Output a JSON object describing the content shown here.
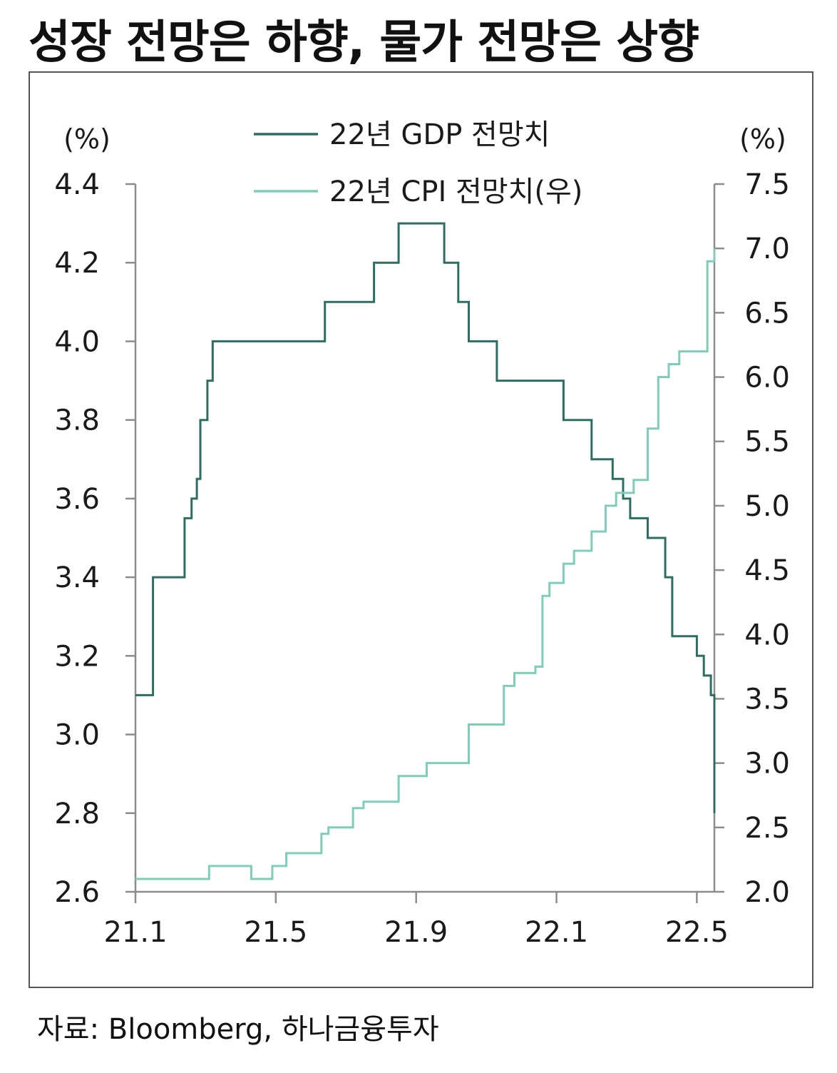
{
  "title": "성장 전망은 하향, 물가 전망은 상향",
  "source": "자료: Bloomberg, 하나금융투자",
  "chart_data": {
    "type": "line",
    "left_unit": "(%)",
    "right_unit": "(%)",
    "left_ylim": [
      2.6,
      4.4
    ],
    "right_ylim": [
      2.0,
      7.5
    ],
    "left_ticks": [
      "4.4",
      "4.2",
      "4.0",
      "3.8",
      "3.6",
      "3.4",
      "3.2",
      "3.0",
      "2.8",
      "2.6"
    ],
    "right_ticks": [
      "7.5",
      "7.0",
      "6.5",
      "6.0",
      "5.5",
      "5.0",
      "4.5",
      "4.0",
      "3.5",
      "3.0",
      "2.5",
      "2.0"
    ],
    "x_ticks": [
      "21.1",
      "21.5",
      "21.9",
      "22.1",
      "22.5"
    ],
    "x_tick_positions": [
      0,
      4,
      8,
      12,
      16
    ],
    "xlim": [
      0,
      16.5
    ],
    "colors": {
      "gdp": "#2e6e60",
      "cpi": "#7fcdb9",
      "axis": "#8c8c8c"
    },
    "series": [
      {
        "name": "22년 GDP 전망치",
        "axis": "left",
        "step": true,
        "x": [
          0,
          0.5,
          1.4,
          1.6,
          1.75,
          1.85,
          2.05,
          2.2,
          2.4,
          2.6,
          5.4,
          6.5,
          6.8,
          7.5,
          8.0,
          8.8,
          9.2,
          9.5,
          10.3,
          11.1,
          12.2,
          13.0,
          13.6,
          13.9,
          14.1,
          14.6,
          15.1,
          15.3,
          16.0,
          16.2,
          16.4,
          16.5
        ],
        "values": [
          3.1,
          3.4,
          3.55,
          3.6,
          3.65,
          3.8,
          3.9,
          4.0,
          4.0,
          4.0,
          4.1,
          4.1,
          4.2,
          4.3,
          4.3,
          4.2,
          4.1,
          4.0,
          3.9,
          3.9,
          3.8,
          3.7,
          3.65,
          3.6,
          3.55,
          3.5,
          3.4,
          3.25,
          3.2,
          3.15,
          3.1,
          2.8
        ]
      },
      {
        "name": "22년 CPI 전망치(우)",
        "axis": "right",
        "step": true,
        "x": [
          0,
          2.1,
          3.3,
          3.9,
          4.1,
          4.3,
          4.5,
          5.3,
          5.5,
          6.2,
          6.5,
          7.5,
          8.3,
          9.5,
          10.5,
          10.8,
          11.4,
          11.6,
          11.8,
          12.2,
          12.5,
          13.0,
          13.4,
          13.7,
          14.2,
          14.6,
          14.9,
          15.2,
          15.5,
          16.3,
          16.5
        ],
        "values": [
          2.1,
          2.2,
          2.1,
          2.2,
          2.2,
          2.3,
          2.3,
          2.45,
          2.5,
          2.65,
          2.7,
          2.9,
          3.0,
          3.3,
          3.6,
          3.7,
          3.75,
          4.3,
          4.4,
          4.55,
          4.65,
          4.8,
          5.0,
          5.1,
          5.2,
          5.6,
          6.0,
          6.1,
          6.2,
          6.9,
          7.0
        ]
      }
    ]
  }
}
